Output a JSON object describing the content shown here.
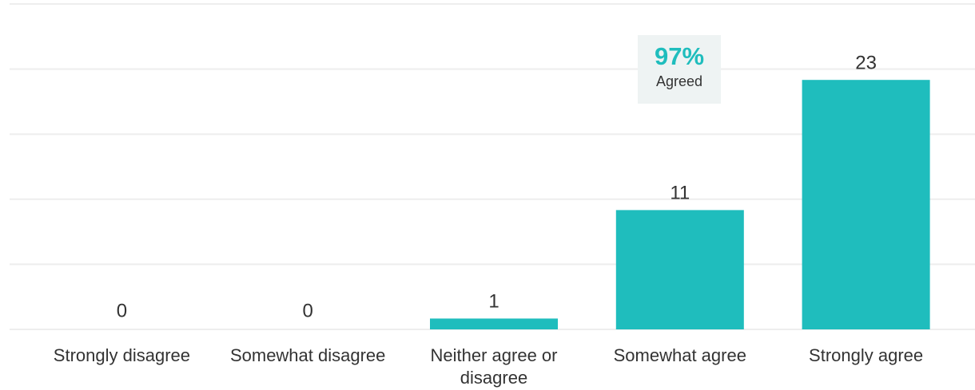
{
  "chart_data": {
    "type": "bar",
    "categories": [
      "Strongly disagree",
      "Somewhat disagree",
      "Neither agree or disagree",
      "Somewhat agree",
      "Strongly agree"
    ],
    "values": [
      0,
      0,
      1,
      11,
      23
    ],
    "color": "#1fbdbd",
    "ylim": [
      0,
      30
    ],
    "yticks": [
      0,
      6,
      12,
      18,
      24,
      30
    ],
    "grid": true,
    "annotation": {
      "value": "97%",
      "label": "Agreed"
    }
  }
}
